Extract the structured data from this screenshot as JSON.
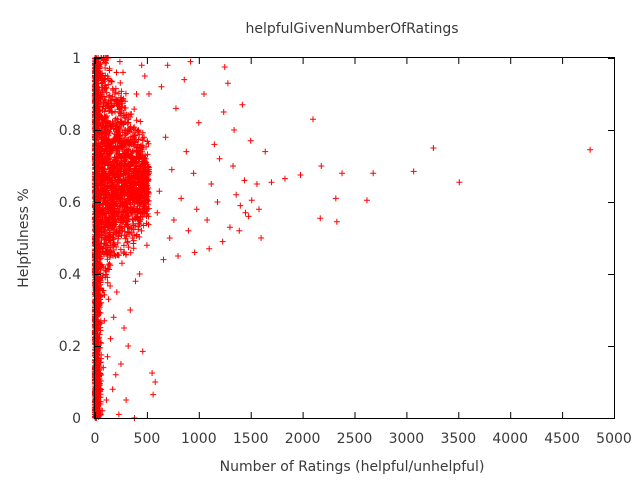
{
  "chart_data": {
    "type": "scatter",
    "title": "helpfulGivenNumberOfRatings",
    "xlabel": "Number of Ratings (helpful/unhelpful)",
    "ylabel": "Helpfulness %",
    "xlim": [
      0,
      5000
    ],
    "ylim": [
      0,
      1
    ],
    "xticks": [
      0,
      500,
      1000,
      1500,
      2000,
      2500,
      3000,
      3500,
      4000,
      4500,
      5000
    ],
    "yticks": [
      0,
      0.2,
      0.4,
      0.6,
      0.8,
      1
    ],
    "xtick_labels": [
      "0",
      "500",
      "1000",
      "1500",
      "2000",
      "2500",
      "3000",
      "3500",
      "4000",
      "4500",
      "5000"
    ],
    "ytick_labels": [
      "0",
      "0.2",
      "0.4",
      "0.6",
      "0.8",
      "1"
    ],
    "grid": false,
    "legend": "none",
    "marker": "+",
    "color": "#ff0000",
    "series": [
      {
        "values": [
          [
            4770,
            0.745
          ],
          [
            3510,
            0.655
          ],
          [
            3260,
            0.75
          ],
          [
            3070,
            0.685
          ],
          [
            2680,
            0.68
          ],
          [
            2620,
            0.605
          ],
          [
            2380,
            0.68
          ],
          [
            2330,
            0.545
          ],
          [
            2320,
            0.61
          ],
          [
            2180,
            0.7
          ],
          [
            2170,
            0.555
          ],
          [
            2100,
            0.83
          ],
          [
            1980,
            0.675
          ],
          [
            1830,
            0.665
          ],
          [
            1700,
            0.655
          ],
          [
            1640,
            0.74
          ],
          [
            1600,
            0.5
          ],
          [
            1580,
            0.58
          ],
          [
            1560,
            0.65
          ],
          [
            1510,
            0.605
          ],
          [
            1500,
            0.77
          ],
          [
            1480,
            0.56
          ],
          [
            1450,
            0.57
          ],
          [
            1440,
            0.66
          ],
          [
            1420,
            0.87
          ],
          [
            1400,
            0.59
          ],
          [
            1390,
            0.52
          ],
          [
            1360,
            0.62
          ],
          [
            1340,
            0.8
          ],
          [
            1330,
            0.7
          ],
          [
            1300,
            0.53
          ],
          [
            1280,
            0.93
          ],
          [
            1250,
            0.975
          ],
          [
            1240,
            0.85
          ],
          [
            1230,
            0.49
          ],
          [
            1200,
            0.72
          ],
          [
            1180,
            0.6
          ],
          [
            1150,
            0.76
          ],
          [
            1120,
            0.65
          ],
          [
            1100,
            0.47
          ],
          [
            1080,
            0.55
          ],
          [
            1050,
            0.9
          ],
          [
            1000,
            0.82
          ],
          [
            980,
            0.58
          ],
          [
            960,
            0.46
          ],
          [
            950,
            0.68
          ],
          [
            920,
            0.99
          ],
          [
            900,
            0.52
          ],
          [
            880,
            0.74
          ],
          [
            860,
            0.94
          ],
          [
            830,
            0.61
          ],
          [
            800,
            0.45
          ],
          [
            780,
            0.86
          ],
          [
            760,
            0.55
          ],
          [
            740,
            0.69
          ],
          [
            720,
            0.5
          ],
          [
            700,
            0.98
          ],
          [
            680,
            0.78
          ],
          [
            660,
            0.44
          ],
          [
            640,
            0.92
          ],
          [
            620,
            0.63
          ],
          [
            600,
            0.57
          ],
          [
            580,
            0.1
          ],
          [
            560,
            0.065
          ],
          [
            550,
            0.125
          ],
          [
            520,
            0.9
          ],
          [
            500,
            0.48
          ],
          [
            480,
            0.95
          ],
          [
            470,
            0.72
          ],
          [
            460,
            0.185
          ],
          [
            450,
            0.98
          ],
          [
            430,
            0.4
          ],
          [
            420,
            0.55
          ],
          [
            400,
            0.9
          ],
          [
            390,
            0.38
          ],
          [
            380,
            0.0
          ],
          [
            360,
            0.5
          ],
          [
            350,
            0.76
          ],
          [
            340,
            0.3
          ],
          [
            320,
            0.2
          ],
          [
            310,
            0.62
          ],
          [
            300,
            0.05
          ],
          [
            290,
            0.88
          ],
          [
            280,
            0.25
          ],
          [
            260,
            0.43
          ],
          [
            250,
            0.15
          ],
          [
            240,
            0.99
          ],
          [
            230,
            0.01
          ],
          [
            220,
            0.7
          ],
          [
            210,
            0.35
          ],
          [
            200,
            0.12
          ],
          [
            190,
            0.58
          ],
          [
            180,
            0.28
          ],
          [
            170,
            0.08
          ],
          [
            160,
            0.46
          ],
          [
            150,
            0.22
          ],
          [
            140,
            0.97
          ],
          [
            130,
            0.33
          ],
          [
            120,
            0.17
          ],
          [
            110,
            0.05
          ],
          [
            100,
            0.41
          ],
          [
            90,
            0.27
          ],
          [
            80,
            0.14
          ],
          [
            70,
            0.02
          ],
          [
            60,
            0.36
          ],
          [
            50,
            0.21
          ],
          [
            40,
            0.09
          ],
          [
            30,
            0.31
          ],
          [
            20,
            0.18
          ],
          [
            15,
            0.04
          ],
          [
            10,
            0.0
          ],
          [
            5,
            1.0
          ],
          [
            30,
            1.0
          ],
          [
            60,
            1.0
          ]
        ]
      }
    ]
  }
}
